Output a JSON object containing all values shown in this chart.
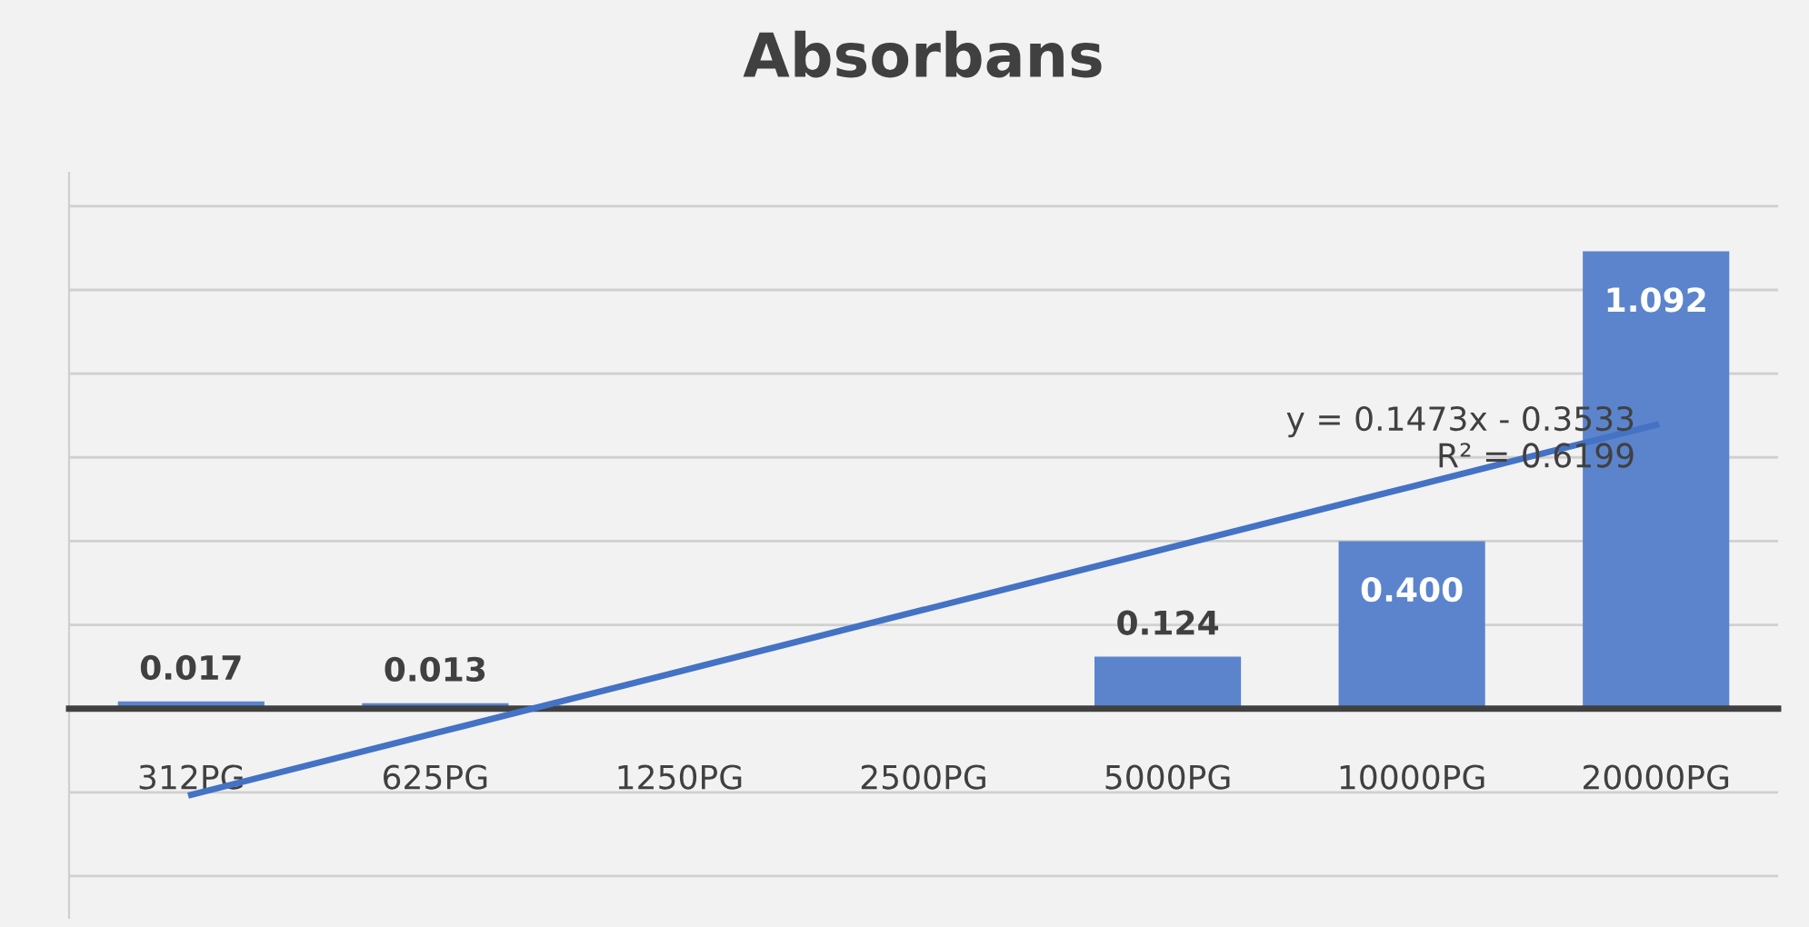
{
  "chart_data": {
    "type": "bar",
    "title": "Absorbans",
    "categories": [
      "312PG",
      "625PG",
      "1250PG",
      "2500PG",
      "5000PG",
      "10000PG",
      "20000PG"
    ],
    "series": [
      {
        "color": "#5b84cc",
        "values": [
          0.017,
          0.013,
          null,
          null,
          0.124,
          0.4,
          1.092
        ],
        "value_labels": [
          "0.017",
          "0.013",
          null,
          null,
          "0.124",
          "0.400",
          "1.092"
        ]
      },
      {
        "type": "line",
        "color": "#4472c4",
        "values": [
          -0.206,
          -0.0587,
          0.0886,
          0.2359,
          0.3832,
          0.5305,
          0.6778
        ]
      }
    ],
    "ylim": [
      -0.5,
      1.28
    ],
    "yticks": [
      {
        "value": -0.4,
        "label": null
      },
      {
        "value": -0.2,
        "label": null
      },
      {
        "value": 0,
        "label": null
      },
      {
        "value": 0.2,
        "label": null
      },
      {
        "value": 0.4,
        "label": null
      },
      {
        "value": 0.6,
        "label": null
      },
      {
        "value": 0.8,
        "label": null
      },
      {
        "value": 1.0,
        "label": null
      },
      {
        "value": 1.2,
        "label": null
      }
    ],
    "grid": "y",
    "tick_labels": "x",
    "annotations": [
      {
        "text": "y = 0.1473x - 0.3533\nR² = 0.6199",
        "x": "10000PG",
        "y": 0.53
      }
    ]
  }
}
